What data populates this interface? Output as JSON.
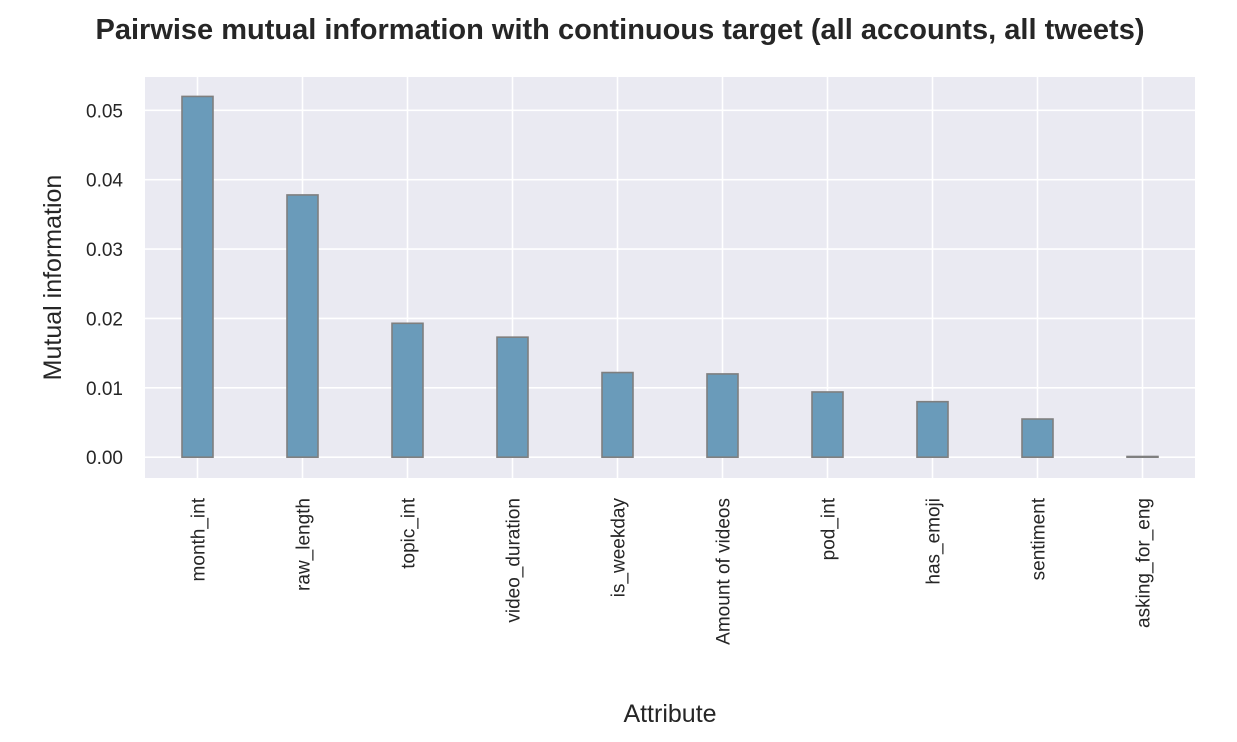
{
  "chart_data": {
    "type": "bar",
    "title": "Pairwise mutual information with continuous target (all accounts, all tweets)",
    "xlabel": "Attribute",
    "ylabel": "Mutual information",
    "categories": [
      "month_int",
      "raw_length",
      "topic_int",
      "video_duration",
      "is_weekday",
      "Amount of videos",
      "pod_int",
      "has_emoji",
      "sentiment",
      "asking_for_eng"
    ],
    "values": [
      0.052,
      0.0378,
      0.0193,
      0.0173,
      0.0122,
      0.012,
      0.0094,
      0.008,
      0.0055,
      0.0001
    ],
    "ylim": [
      -0.003,
      0.0548
    ],
    "yticks": [
      0.0,
      0.01,
      0.02,
      0.03,
      0.04,
      0.05
    ],
    "ytick_labels": [
      "0.00",
      "0.01",
      "0.02",
      "0.03",
      "0.04",
      "0.05"
    ],
    "grid": true,
    "legend": "none",
    "colors": {
      "background": "#eaeaf2",
      "grid": "#ffffff",
      "bar_fill": "#6a9bba",
      "bar_edge": "#7f7f7f",
      "text": "#262626"
    }
  }
}
